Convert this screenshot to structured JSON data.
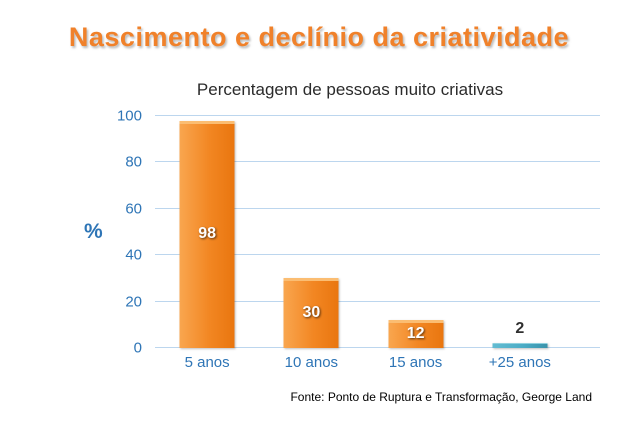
{
  "slide": {
    "title": "Nascimento e declínio da criatividade",
    "chart_title": "Percentagem de pessoas muito criativas",
    "footer": "Fonte: Ponto de Ruptura e Transformação, George Land"
  },
  "chart_data": {
    "type": "bar",
    "title": "Percentagem de pessoas muito criativas",
    "categories": [
      "5 anos",
      "10 anos",
      "15 anos",
      "+25 anos"
    ],
    "values": [
      98,
      30,
      12,
      2
    ],
    "xlabel": "",
    "ylabel": "%",
    "ylim": [
      0,
      100
    ],
    "yticks": [
      100,
      80,
      60,
      40,
      20,
      0
    ],
    "grid": true,
    "legend": false,
    "bar_colors": [
      "orange",
      "orange",
      "orange",
      "blue"
    ],
    "value_label_position": [
      "inside",
      "inside",
      "inside",
      "above"
    ]
  },
  "colors": {
    "title_orange": "#F0812A",
    "axis_blue": "#2E75B6",
    "gridline_blue": "#BCD6EE",
    "bar_orange": "#F28622",
    "bar_blue": "#4BACC6",
    "value_label_inside": "#FFFFFF",
    "value_label_above": "#303030"
  }
}
